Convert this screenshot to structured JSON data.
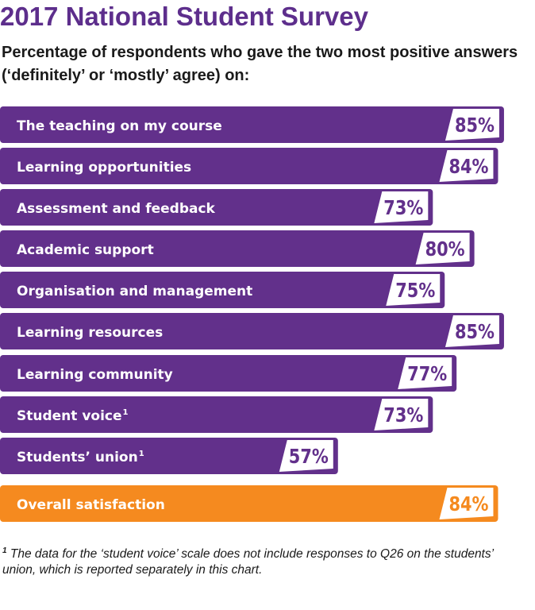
{
  "chart_data": {
    "type": "bar",
    "orientation": "horizontal",
    "title": "2017 National Student Survey",
    "subtitle": "Percentage of respondents who gave the two most positive answers (‘definitely’ or ‘mostly’ agree) on:",
    "categories": [
      {
        "label": "The teaching on my course",
        "sup": ""
      },
      {
        "label": "Learning opportunities",
        "sup": ""
      },
      {
        "label": "Assessment and feedback",
        "sup": ""
      },
      {
        "label": "Academic support",
        "sup": ""
      },
      {
        "label": "Organisation and management",
        "sup": ""
      },
      {
        "label": "Learning resources",
        "sup": ""
      },
      {
        "label": "Learning community",
        "sup": ""
      },
      {
        "label": "Student voice",
        "sup": "1"
      },
      {
        "label": "Students’ union",
        "sup": "1"
      },
      {
        "label": "Overall satisfaction",
        "sup": ""
      }
    ],
    "values": [
      85,
      84,
      73,
      80,
      75,
      85,
      77,
      73,
      57,
      84
    ],
    "value_labels": [
      "85%",
      "84%",
      "73%",
      "80%",
      "75%",
      "85%",
      "77%",
      "73%",
      "57%",
      "84%"
    ],
    "highlight_index": 9,
    "colors": {
      "bar": "#62308b",
      "highlight": "#f58a1f",
      "label_box": "#ffffff",
      "value_text": "#62308b",
      "highlight_value_text": "#f58a1f"
    }
  },
  "footnote": {
    "marker": "1",
    "text": " The data for the ‘student voice’ scale does not include responses to Q26 on the students’ union, which is reported separately in this chart."
  }
}
